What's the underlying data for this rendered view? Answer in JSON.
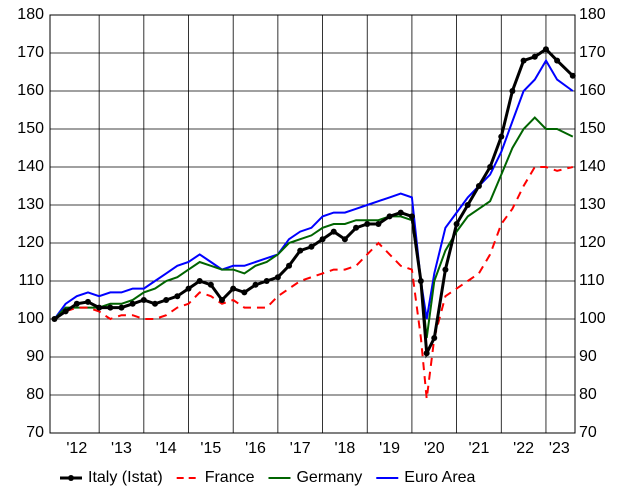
{
  "chart_data": {
    "type": "line",
    "x": [
      2012.0,
      2012.25,
      2012.5,
      2012.75,
      2013.0,
      2013.25,
      2013.5,
      2013.75,
      2014.0,
      2014.25,
      2014.5,
      2014.75,
      2015.0,
      2015.25,
      2015.5,
      2015.75,
      2016.0,
      2016.25,
      2016.5,
      2016.75,
      2017.0,
      2017.25,
      2017.5,
      2017.75,
      2018.0,
      2018.25,
      2018.5,
      2018.75,
      2019.0,
      2019.25,
      2019.5,
      2019.75,
      2020.0,
      2020.2,
      2020.33,
      2020.5,
      2020.75,
      2021.0,
      2021.25,
      2021.5,
      2021.75,
      2022.0,
      2022.25,
      2022.5,
      2022.75,
      2023.0,
      2023.25,
      2023.6
    ],
    "series": [
      {
        "name": "Italy (Istat)",
        "color": "#000000",
        "marker": "circle",
        "values": [
          100,
          102,
          104,
          104.5,
          103,
          103,
          103,
          104,
          105,
          104,
          105,
          106,
          108,
          110,
          109,
          105,
          108,
          107,
          109,
          110,
          111,
          114,
          118,
          119,
          121,
          123,
          121,
          124,
          125,
          125,
          127,
          128,
          127,
          110,
          91,
          95,
          113,
          125,
          130,
          135,
          140,
          148,
          160,
          168,
          169,
          171,
          168,
          164
        ]
      },
      {
        "name": "France",
        "color": "#ff0000",
        "dash": true,
        "values": [
          100,
          102,
          103,
          103,
          102,
          100,
          101,
          101,
          100,
          100,
          101,
          103,
          104,
          107,
          106,
          104,
          105,
          103,
          103,
          103,
          106,
          108,
          110,
          111,
          112,
          113,
          113,
          114,
          117,
          120,
          117,
          114,
          113,
          95,
          79,
          95,
          106,
          108,
          110,
          112,
          117,
          125,
          129,
          135,
          140,
          140,
          139,
          140
        ]
      },
      {
        "name": "Germany",
        "color": "#006400",
        "values": [
          100,
          103,
          103,
          103,
          103,
          104,
          104,
          105,
          107,
          108,
          110,
          111,
          113,
          115,
          114,
          113,
          113,
          112,
          114,
          115,
          117,
          120,
          121,
          122,
          124,
          125,
          125,
          126,
          126,
          126,
          127,
          127,
          126,
          110,
          95,
          110,
          118,
          123,
          127,
          129,
          131,
          138,
          145,
          150,
          153,
          150,
          150,
          148
        ]
      },
      {
        "name": "Euro Area",
        "color": "#0000ff",
        "values": [
          100,
          104,
          106,
          107,
          106,
          107,
          107,
          108,
          108,
          110,
          112,
          114,
          115,
          117,
          115,
          113,
          114,
          114,
          115,
          116,
          117,
          121,
          123,
          124,
          127,
          128,
          128,
          129,
          130,
          131,
          132,
          133,
          132,
          110,
          100,
          112,
          124,
          128,
          132,
          135,
          138,
          144,
          152,
          160,
          163,
          168,
          163,
          160
        ]
      }
    ],
    "xlim": [
      2011.9,
      2023.65
    ],
    "xticks": [
      {
        "value": 2012.5,
        "label": "'12"
      },
      {
        "value": 2013.5,
        "label": "'13"
      },
      {
        "value": 2014.5,
        "label": "'14"
      },
      {
        "value": 2015.5,
        "label": "'15"
      },
      {
        "value": 2016.5,
        "label": "'16"
      },
      {
        "value": 2017.5,
        "label": "'17"
      },
      {
        "value": 2018.5,
        "label": "'18"
      },
      {
        "value": 2019.5,
        "label": "'19"
      },
      {
        "value": 2020.5,
        "label": "'20"
      },
      {
        "value": 2021.5,
        "label": "'21"
      },
      {
        "value": 2022.5,
        "label": "'22"
      },
      {
        "value": 2023.3,
        "label": "'23"
      }
    ],
    "ylim": [
      70,
      180
    ],
    "yticks": [
      70,
      80,
      90,
      100,
      110,
      120,
      130,
      140,
      150,
      160,
      170,
      180
    ],
    "grid": true,
    "legend": "bottom"
  }
}
